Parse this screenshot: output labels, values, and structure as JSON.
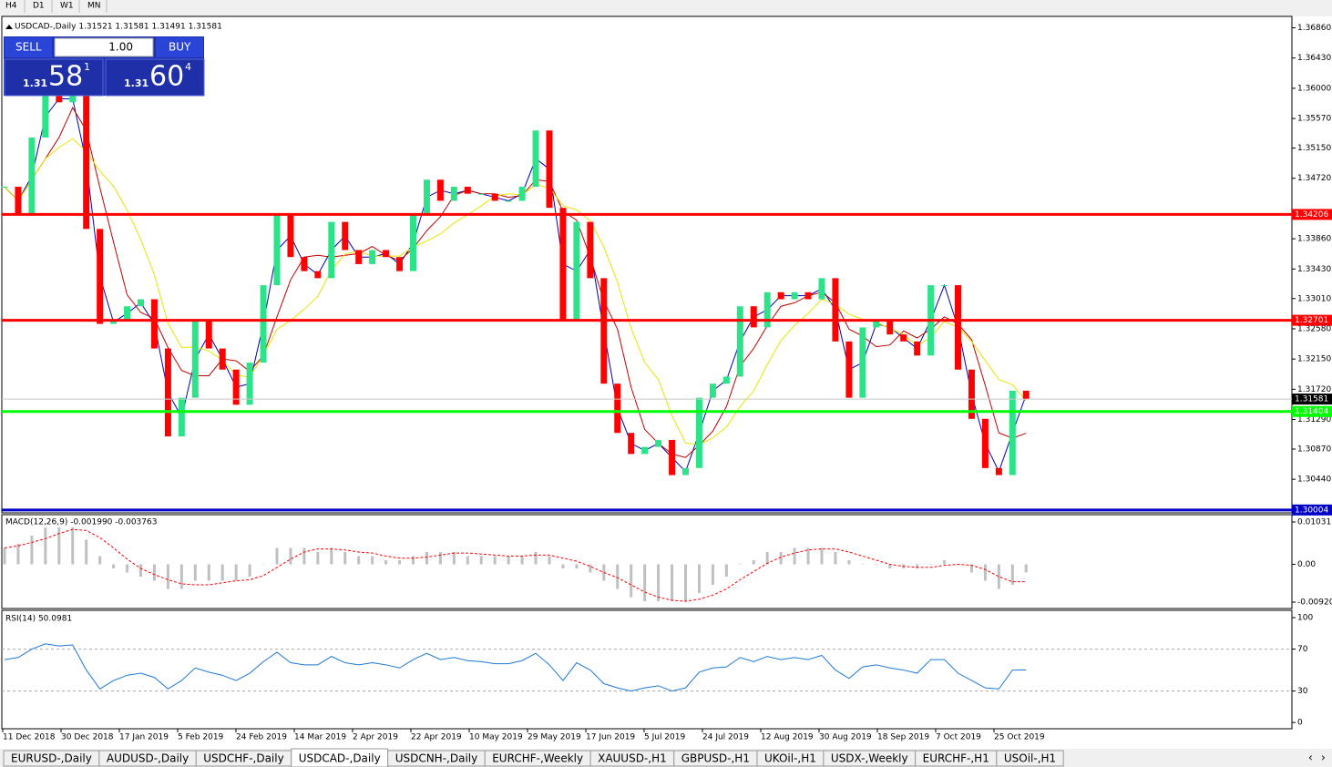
{
  "toolbar": [
    "H4",
    "D1",
    "W1",
    "MN"
  ],
  "trade_panel": {
    "sell": "SELL",
    "buy": "BUY",
    "lot": "1.00",
    "sell_price": {
      "big": "1.31",
      "main": "58",
      "small": "1"
    },
    "buy_price": {
      "big": "1.31",
      "main": "60",
      "small": "4"
    }
  },
  "tabs": [
    "EURUSD-,Daily",
    "AUDUSD-,Daily",
    "USDCHF-,Daily",
    "USDCAD-,Daily",
    "USDCNH-,Daily",
    "EURCHF-,Weekly",
    "XAUUSD-,H1",
    "GBPUSD-,H1",
    "UKOil-,H1",
    "USDX-,Weekly",
    "EURCHF-,H1",
    "USOil-,H1"
  ],
  "active_tab": "USDCAD-,Daily",
  "chart_data": [
    {
      "type": "candlestick",
      "title": "USDCAD-,Daily 1.31521 1.31581 1.31491 1.31581",
      "up_color": "#2de38a",
      "down_color": "#ff0000",
      "values": [
        1.346,
        1.342,
        1.353,
        1.359,
        1.358,
        1.359,
        1.34,
        1.3265,
        1.327,
        1.329,
        1.33,
        1.323,
        1.3105,
        1.316,
        1.327,
        1.323,
        1.32,
        1.315,
        1.321,
        1.332,
        1.342,
        1.336,
        1.334,
        1.333,
        1.341,
        1.337,
        1.335,
        1.337,
        1.336,
        1.334,
        1.342,
        1.347,
        1.344,
        1.346,
        1.345,
        1.345,
        1.344,
        1.344,
        1.346,
        1.354,
        1.343,
        1.327,
        1.341,
        1.333,
        1.318,
        1.311,
        1.308,
        1.309,
        1.31,
        1.305,
        1.306,
        1.316,
        1.318,
        1.319,
        1.329,
        1.326,
        1.331,
        1.33,
        1.331,
        1.33,
        1.333,
        1.324,
        1.316,
        1.326,
        1.327,
        1.325,
        1.324,
        1.322,
        1.332,
        1.332,
        1.32,
        1.313,
        1.306,
        1.305,
        1.317,
        1.31581
      ],
      "ylim": [
        1.29963,
        1.37022
      ],
      "yticks": [
        {
          "value": 1.3686,
          "label": "1.36860"
        },
        {
          "value": 1.3643,
          "label": "1.36430"
        },
        {
          "value": 1.36,
          "label": "1.36000"
        },
        {
          "value": 1.3557,
          "label": "1.35570"
        },
        {
          "value": 1.3515,
          "label": "1.35150"
        },
        {
          "value": 1.3472,
          "label": "1.34720"
        },
        {
          "value": 1.3386,
          "label": "1.33860"
        },
        {
          "value": 1.3343,
          "label": "1.33430"
        },
        {
          "value": 1.3301,
          "label": "1.33010"
        },
        {
          "value": 1.3258,
          "label": "1.32580"
        },
        {
          "value": 1.3215,
          "label": "1.32150"
        },
        {
          "value": 1.3172,
          "label": "1.31720"
        },
        {
          "value": 1.3129,
          "label": "1.31290"
        },
        {
          "value": 1.3087,
          "label": "1.30870"
        },
        {
          "value": 1.3044,
          "label": "1.30440"
        }
      ],
      "levels": [
        {
          "value": 1.34206,
          "label": "1.34206",
          "color": "#ff0000"
        },
        {
          "value": 1.32701,
          "label": "1.32701",
          "color": "#ff0000"
        },
        {
          "value": 1.31581,
          "label": "1.31581",
          "color": "#000000"
        },
        {
          "value": 1.31404,
          "label": "1.31404",
          "color": "#00ff00"
        },
        {
          "value": 1.30004,
          "label": "1.30004",
          "color": "#0000c8"
        }
      ],
      "x_labels": [
        "11 Dec 2018",
        "30 Dec 2018",
        "17 Jan 2019",
        "5 Feb 2019",
        "24 Feb 2019",
        "14 Mar 2019",
        "2 Apr 2019",
        "22 Apr 2019",
        "10 May 2019",
        "29 May 2019",
        "17 Jun 2019",
        "5 Jul 2019",
        "24 Jul 2019",
        "12 Aug 2019",
        "30 Aug 2019",
        "18 Sep 2019",
        "7 Oct 2019",
        "25 Oct 2019"
      ]
    },
    {
      "type": "macd",
      "title": "MACD(12,26,9) -0.001990 -0.003763",
      "color": "#c0c0c0",
      "signal_color": "#ff0000",
      "values": [
        0.004,
        0.005,
        0.007,
        0.009,
        0.009,
        0.009,
        0.006,
        0.002,
        -0.001,
        -0.002,
        -0.003,
        -0.004,
        -0.006,
        -0.006,
        -0.004,
        -0.004,
        -0.004,
        -0.004,
        -0.003,
        0,
        0.004,
        0.004,
        0.004,
        0.003,
        0.004,
        0.003,
        0.002,
        0.002,
        0.001,
        0.001,
        0.002,
        0.003,
        0.003,
        0.003,
        0.002,
        0.002,
        0.002,
        0.002,
        0.002,
        0.003,
        0.002,
        -0.001,
        -0.001,
        -0.002,
        -0.004,
        -0.006,
        -0.008,
        -0.009,
        -0.009,
        -0.009,
        -0.009,
        -0.007,
        -0.005,
        -0.003,
        0,
        0.001,
        0.003,
        0.003,
        0.004,
        0.004,
        0.004,
        0.003,
        0.001,
        0,
        0,
        -0.001,
        -0.001,
        -0.001,
        0,
        0.001,
        0,
        -0.002,
        -0.004,
        -0.006,
        -0.005,
        -0.00199
      ],
      "ylim": [
        -0.01076,
        0.01209
      ],
      "yticks": [
        {
          "value": 0.010311,
          "label": "0.010311"
        },
        {
          "value": 0,
          "label": "0.00"
        },
        {
          "value": -0.009203,
          "label": "-0.009203"
        }
      ]
    },
    {
      "type": "line",
      "title": "RSI(14) 50.0981",
      "color": "#1e78d2",
      "values": [
        60,
        62,
        70,
        75,
        73,
        74,
        50,
        32,
        40,
        45,
        47,
        43,
        32,
        40,
        52,
        48,
        45,
        40,
        47,
        58,
        67,
        57,
        55,
        55,
        63,
        57,
        55,
        57,
        55,
        52,
        60,
        66,
        60,
        62,
        59,
        58,
        56,
        56,
        59,
        66,
        55,
        40,
        57,
        50,
        37,
        33,
        30,
        33,
        35,
        30,
        33,
        48,
        52,
        53,
        62,
        58,
        63,
        60,
        62,
        60,
        64,
        50,
        42,
        53,
        55,
        52,
        50,
        47,
        60,
        60,
        47,
        40,
        33,
        32,
        50,
        50.0981
      ],
      "ylim": [
        -6,
        107
      ],
      "yticks": [
        100,
        70,
        30,
        0
      ],
      "levels": [
        70,
        30
      ]
    }
  ]
}
